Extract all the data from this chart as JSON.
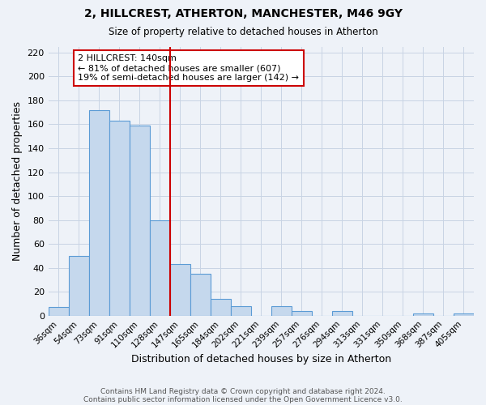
{
  "title": "2, HILLCREST, ATHERTON, MANCHESTER, M46 9GY",
  "subtitle": "Size of property relative to detached houses in Atherton",
  "xlabel": "Distribution of detached houses by size in Atherton",
  "ylabel": "Number of detached properties",
  "footer_line1": "Contains HM Land Registry data © Crown copyright and database right 2024.",
  "footer_line2": "Contains public sector information licensed under the Open Government Licence v3.0.",
  "categories": [
    "36sqm",
    "54sqm",
    "73sqm",
    "91sqm",
    "110sqm",
    "128sqm",
    "147sqm",
    "165sqm",
    "184sqm",
    "202sqm",
    "221sqm",
    "239sqm",
    "257sqm",
    "276sqm",
    "294sqm",
    "313sqm",
    "331sqm",
    "350sqm",
    "368sqm",
    "387sqm",
    "405sqm"
  ],
  "values": [
    7,
    50,
    172,
    163,
    159,
    80,
    43,
    35,
    14,
    8,
    0,
    8,
    4,
    0,
    4,
    0,
    0,
    0,
    2,
    0,
    2
  ],
  "bar_facecolor": "#c5d8ed",
  "bar_edgecolor": "#5b9bd5",
  "annotation_title": "2 HILLCREST: 140sqm",
  "annotation_line1": "← 81% of detached houses are smaller (607)",
  "annotation_line2": "19% of semi-detached houses are larger (142) →",
  "annotation_box_facecolor": "#ffffff",
  "annotation_box_edgecolor": "#cc0000",
  "vline_color": "#cc0000",
  "vline_position": 5.5,
  "ylim": [
    0,
    225
  ],
  "yticks": [
    0,
    20,
    40,
    60,
    80,
    100,
    120,
    140,
    160,
    180,
    200,
    220
  ],
  "bg_color": "#eef2f8",
  "grid_color": "#c8d4e4",
  "title_fontsize": 10,
  "subtitle_fontsize": 8.5
}
